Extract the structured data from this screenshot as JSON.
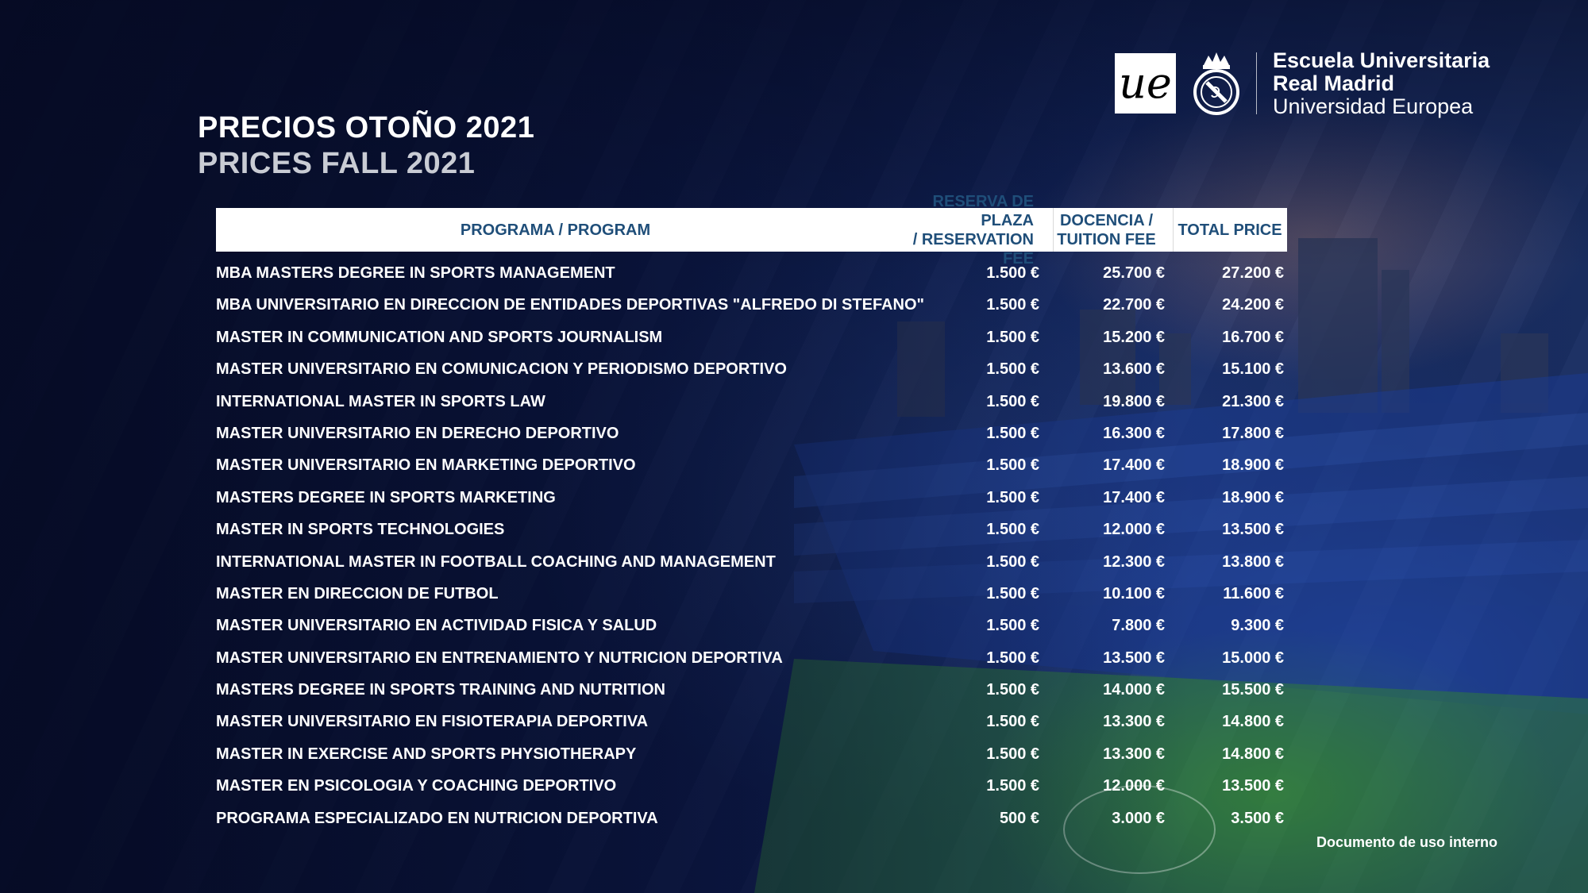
{
  "title": {
    "es": "PRECIOS OTOÑO 2021",
    "en": "PRICES FALL 2021"
  },
  "brand": {
    "monogram": "ue",
    "line1": "Escuela Universitaria",
    "line2": "Real Madrid",
    "line3": "Universidad Europea"
  },
  "table": {
    "headers": {
      "program": "PROGRAMA / PROGRAM",
      "reservation_line1": "RESERVA DE PLAZA",
      "reservation_line2": "/ RESERVATION FEE",
      "tuition_line1": "DOCENCIA /",
      "tuition_line2": "TUITION FEE",
      "total": "TOTAL PRICE"
    },
    "rows": [
      {
        "program": "MBA MASTERS DEGREE IN SPORTS MANAGEMENT",
        "reservation": "1.500 €",
        "tuition": "25.700 €",
        "total": "27.200 €"
      },
      {
        "program": "MBA UNIVERSITARIO EN DIRECCION DE ENTIDADES DEPORTIVAS \"ALFREDO DI STEFANO\"",
        "reservation": "1.500 €",
        "tuition": "22.700 €",
        "total": "24.200 €"
      },
      {
        "program": "MASTER IN COMMUNICATION AND SPORTS JOURNALISM",
        "reservation": "1.500 €",
        "tuition": "15.200 €",
        "total": "16.700 €"
      },
      {
        "program": "MASTER UNIVERSITARIO EN COMUNICACION Y PERIODISMO DEPORTIVO",
        "reservation": "1.500 €",
        "tuition": "13.600 €",
        "total": "15.100 €"
      },
      {
        "program": "INTERNATIONAL MASTER IN SPORTS LAW",
        "reservation": "1.500 €",
        "tuition": "19.800 €",
        "total": "21.300 €"
      },
      {
        "program": "MASTER UNIVERSITARIO EN DERECHO DEPORTIVO",
        "reservation": "1.500 €",
        "tuition": "16.300 €",
        "total": "17.800 €"
      },
      {
        "program": "MASTER UNIVERSITARIO EN MARKETING DEPORTIVO",
        "reservation": "1.500 €",
        "tuition": "17.400 €",
        "total": "18.900 €"
      },
      {
        "program": "MASTERS DEGREE IN SPORTS MARKETING",
        "reservation": "1.500 €",
        "tuition": "17.400 €",
        "total": "18.900 €"
      },
      {
        "program": "MASTER IN SPORTS TECHNOLOGIES",
        "reservation": "1.500 €",
        "tuition": "12.000 €",
        "total": "13.500 €"
      },
      {
        "program": "INTERNATIONAL MASTER IN FOOTBALL COACHING AND MANAGEMENT",
        "reservation": "1.500 €",
        "tuition": "12.300 €",
        "total": "13.800 €"
      },
      {
        "program": "MASTER EN DIRECCION DE FUTBOL",
        "reservation": "1.500 €",
        "tuition": "10.100 €",
        "total": "11.600 €"
      },
      {
        "program": "MASTER UNIVERSITARIO EN ACTIVIDAD FISICA Y SALUD",
        "reservation": "1.500 €",
        "tuition": "7.800 €",
        "total": "9.300 €"
      },
      {
        "program": "MASTER UNIVERSITARIO EN ENTRENAMIENTO Y NUTRICION DEPORTIVA",
        "reservation": "1.500 €",
        "tuition": "13.500 €",
        "total": "15.000 €"
      },
      {
        "program": "MASTERS DEGREE IN SPORTS TRAINING AND NUTRITION",
        "reservation": "1.500 €",
        "tuition": "14.000 €",
        "total": "15.500 €"
      },
      {
        "program": "MASTER UNIVERSITARIO EN FISIOTERAPIA DEPORTIVA",
        "reservation": "1.500 €",
        "tuition": "13.300 €",
        "total": "14.800 €"
      },
      {
        "program": "MASTER IN EXERCISE AND SPORTS PHYSIOTHERAPY",
        "reservation": "1.500 €",
        "tuition": "13.300 €",
        "total": "14.800 €"
      },
      {
        "program": "MASTER EN PSICOLOGIA Y COACHING DEPORTIVO",
        "reservation": "1.500 €",
        "tuition": "12.000 €",
        "total": "13.500 €"
      },
      {
        "program": "PROGRAMA ESPECIALIZADO EN NUTRICION DEPORTIVA",
        "reservation": "500 €",
        "tuition": "3.000 €",
        "total": "3.500 €"
      }
    ]
  },
  "footer": {
    "note": "Documento de uso interno"
  },
  "colors": {
    "header_text": "#1f4e79",
    "background": "#0b1533"
  }
}
